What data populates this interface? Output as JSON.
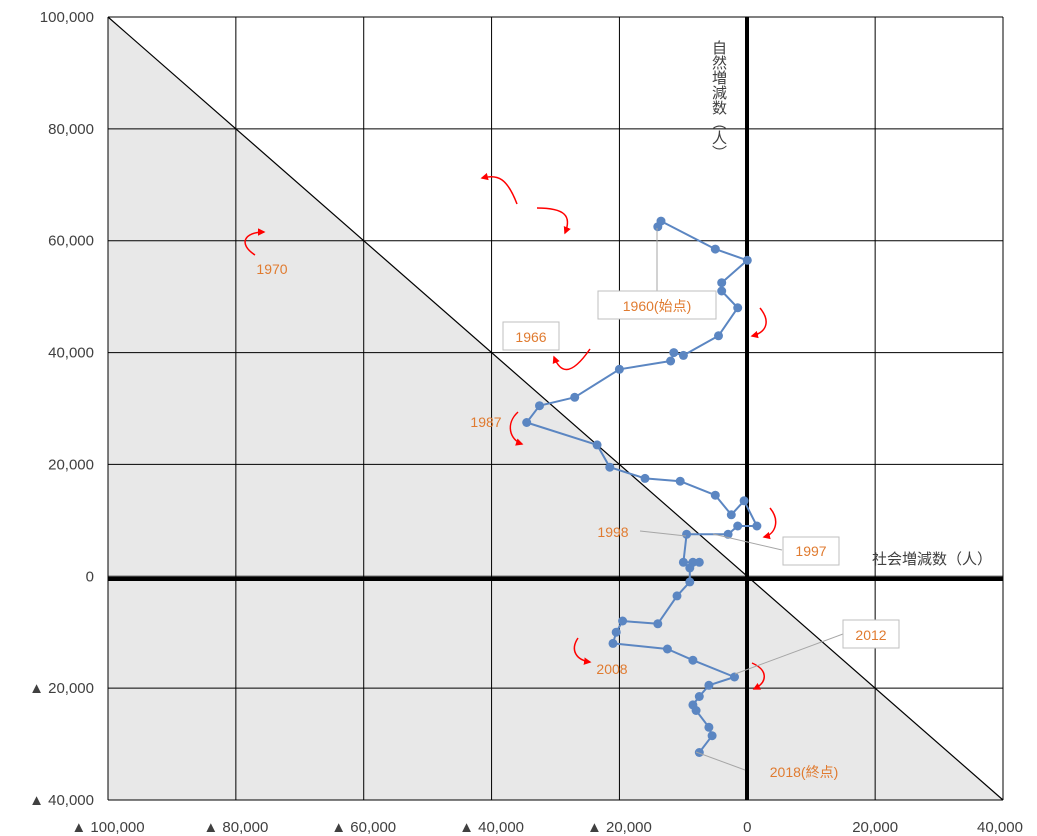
{
  "chart_data": {
    "type": "scatter",
    "title": "",
    "xlabel": "社会増減数（人）",
    "ylabel": "自然増減数（人）",
    "xlim": [
      -100000,
      40000
    ],
    "ylim": [
      -40000,
      100000
    ],
    "grid": true,
    "x_tick_labels": [
      "▲ 100,000",
      "▲ 80,000",
      "▲ 60,000",
      "▲ 40,000",
      "▲ 20,000",
      "0",
      "20,000",
      "40,000"
    ],
    "y_tick_labels": [
      "▲ 40,000",
      "▲ 20,000",
      "0",
      "20,000",
      "40,000",
      "60,000",
      "80,000",
      "100,000"
    ],
    "x_ticks": [
      -100000,
      -80000,
      -60000,
      -40000,
      -20000,
      0,
      20000,
      40000
    ],
    "y_ticks": [
      -40000,
      -20000,
      0,
      20000,
      40000,
      60000,
      80000,
      100000
    ],
    "shaded_region": "below line x + y = 0",
    "colors": {
      "series": "#5b86c2",
      "arrow": "#ff0000",
      "label": "#e07b30",
      "grid": "#000000",
      "shade": "#e8e8e8"
    },
    "series": [
      {
        "points": [
          [
            -14000,
            62500
          ],
          [
            -13500,
            63500
          ],
          [
            -5000,
            58500
          ],
          [
            0,
            56500
          ],
          [
            -4000,
            52500
          ],
          [
            -4000,
            51000
          ],
          [
            -1500,
            48000
          ],
          [
            -4500,
            43000
          ],
          [
            -10000,
            39500
          ],
          [
            -11500,
            40000
          ],
          [
            -12000,
            38500
          ],
          [
            -20000,
            37000
          ],
          [
            -27000,
            32000
          ],
          [
            -32500,
            30500
          ],
          [
            -34500,
            27500
          ],
          [
            -23500,
            23500
          ],
          [
            -21500,
            19500
          ],
          [
            -16000,
            17500
          ],
          [
            -10500,
            17000
          ],
          [
            -5000,
            14500
          ],
          [
            -2500,
            11000
          ],
          [
            -500,
            13500
          ],
          [
            1500,
            9000
          ],
          [
            -1500,
            9000
          ],
          [
            -3000,
            7500
          ],
          [
            -9500,
            7500
          ],
          [
            -10000,
            2500
          ],
          [
            -8500,
            2500
          ],
          [
            -7500,
            2500
          ],
          [
            -9000,
            1500
          ],
          [
            -9000,
            -1000
          ],
          [
            -11000,
            -3500
          ],
          [
            -14000,
            -8500
          ],
          [
            -19500,
            -8000
          ],
          [
            -20500,
            -10000
          ],
          [
            -21000,
            -12000
          ],
          [
            -12500,
            -13000
          ],
          [
            -8500,
            -15000
          ],
          [
            -2000,
            -18000
          ],
          [
            -6000,
            -19500
          ],
          [
            -7500,
            -21500
          ],
          [
            -8500,
            -23000
          ],
          [
            -8000,
            -24000
          ],
          [
            -6000,
            -27000
          ],
          [
            -5500,
            -28500
          ],
          [
            -7500,
            -31500
          ]
        ]
      }
    ],
    "annotations": [
      "1960(始点)",
      "1966",
      "1970",
      "1987",
      "1997",
      "1998",
      "2008",
      "2012",
      "2018(終点)"
    ]
  }
}
